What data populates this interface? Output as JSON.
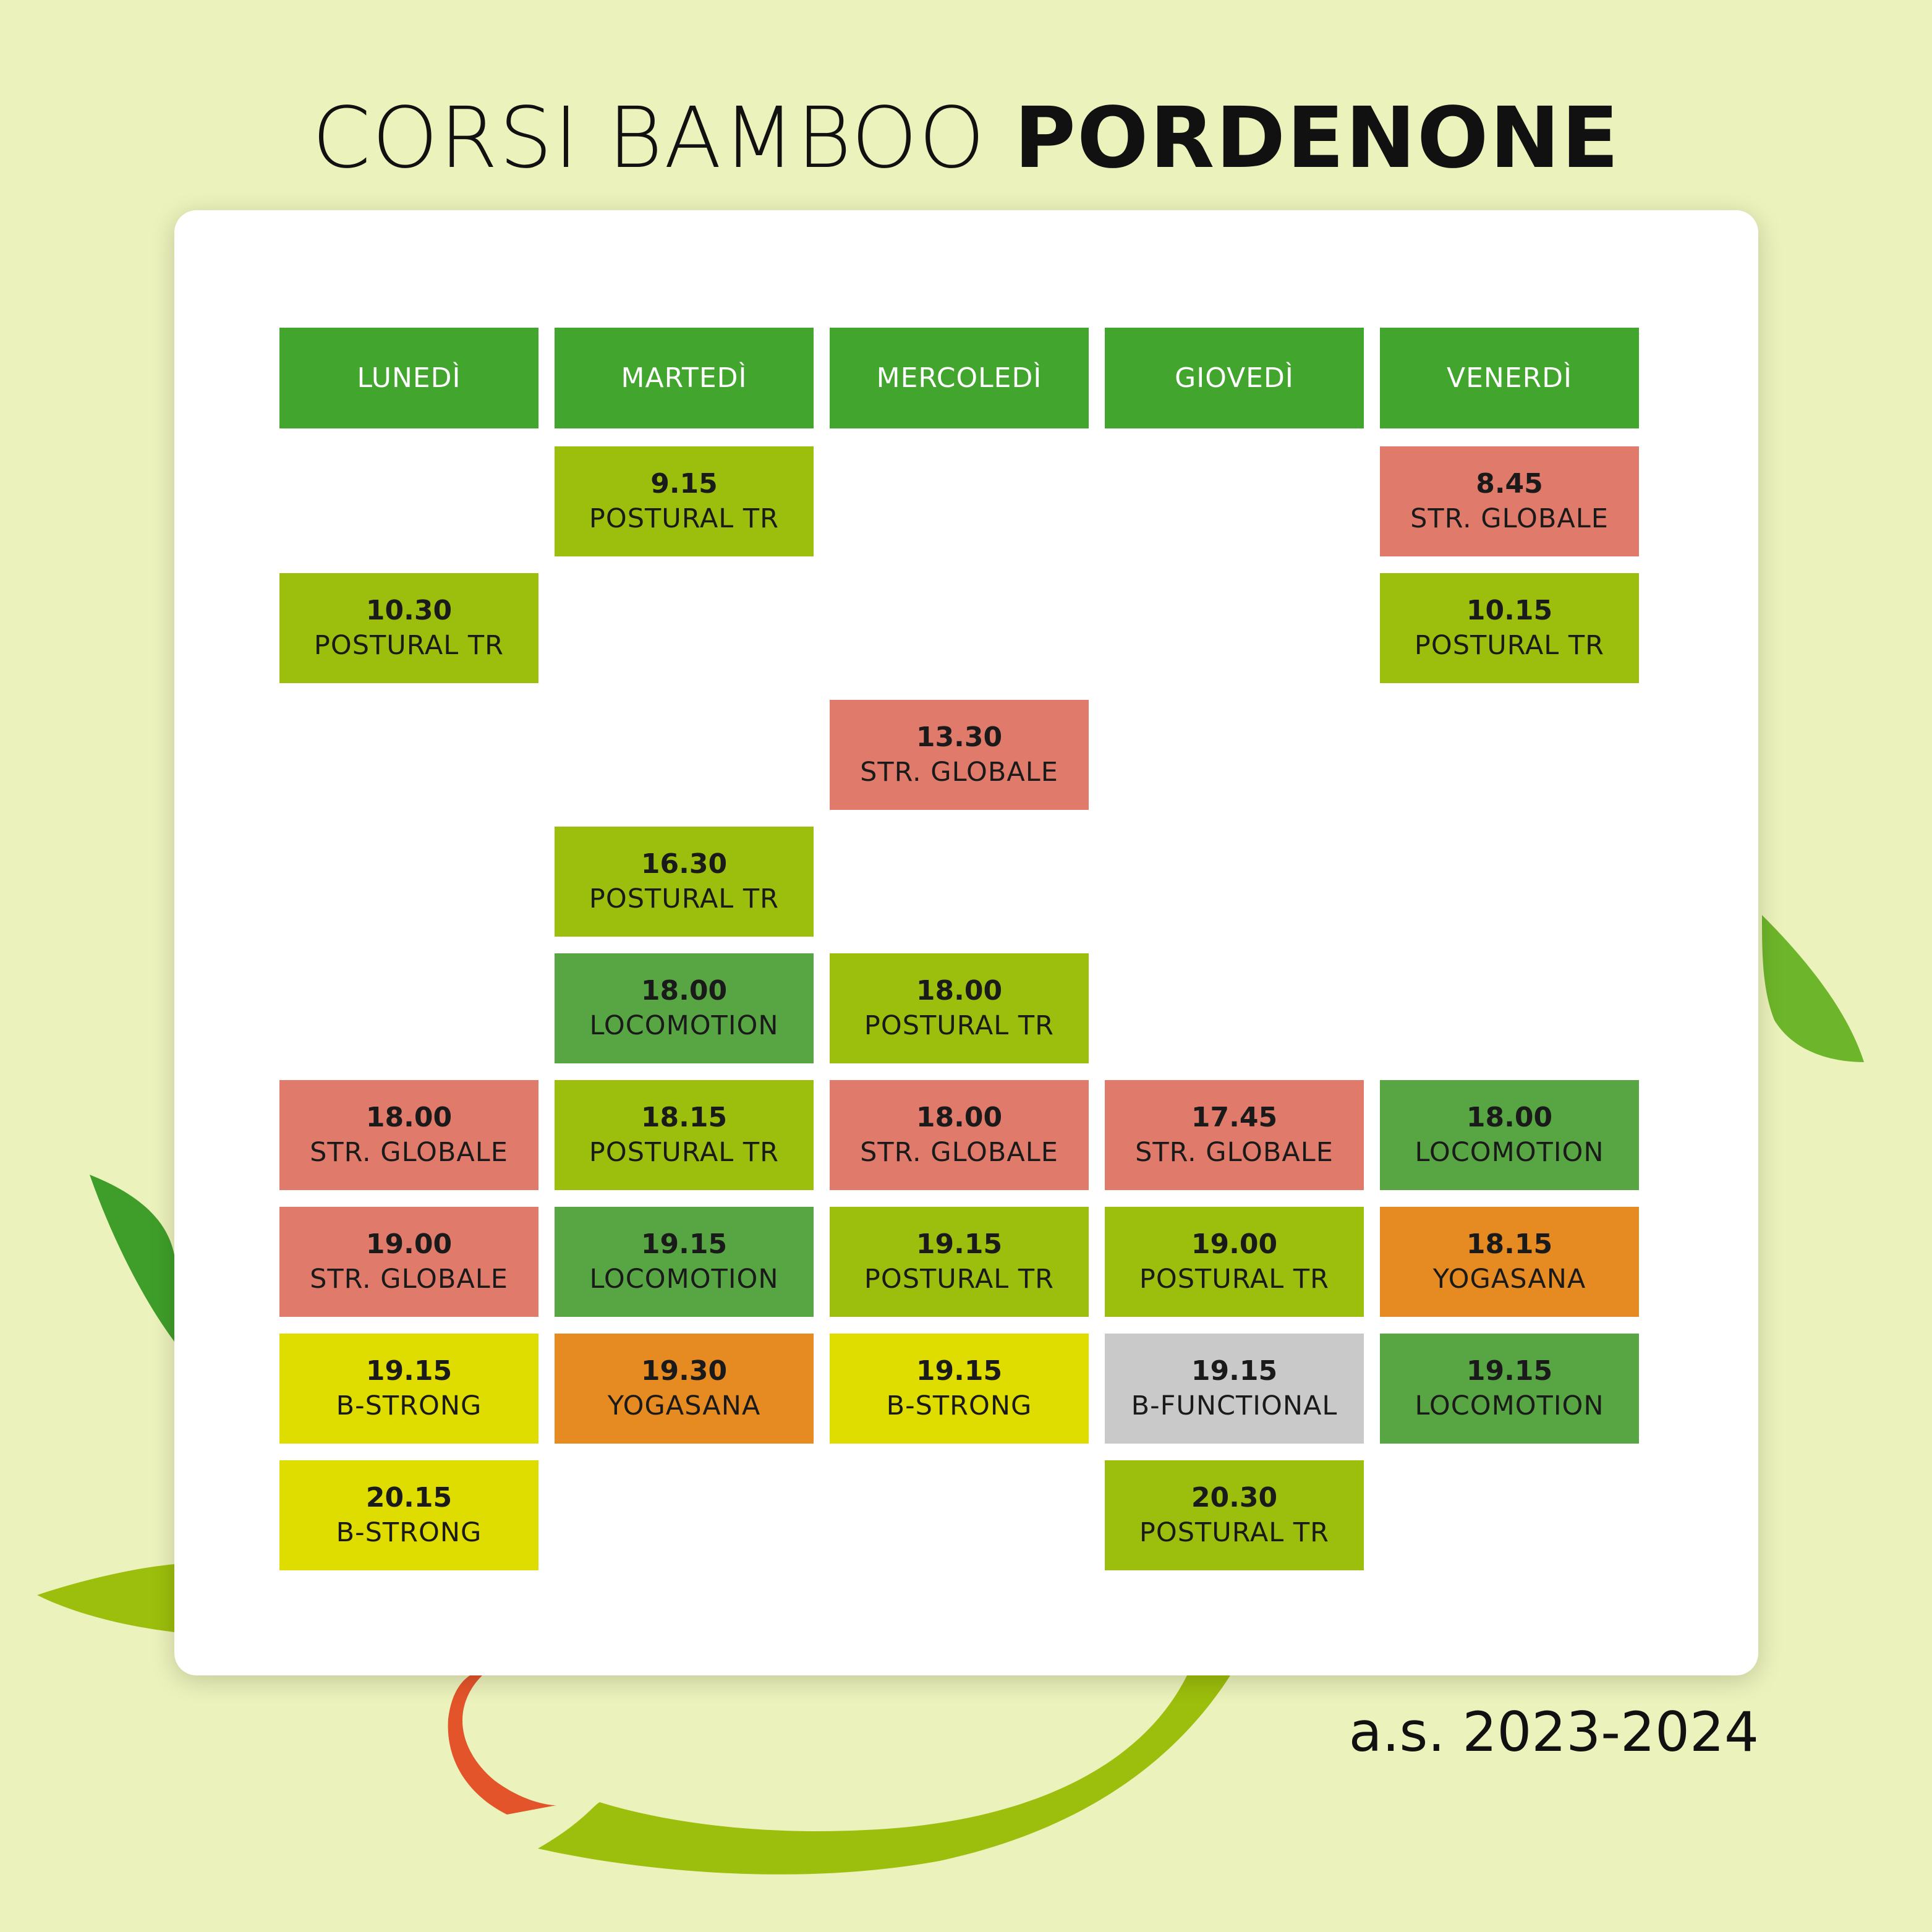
{
  "title": {
    "light": "CORSI BAMBOO ",
    "bold": "PORDENONE"
  },
  "footer": "a.s. 2023-2024",
  "colors": {
    "background": "#ecf2bb",
    "header": "#42a62e",
    "postural_tr": "#9cbe0c",
    "str_globale": "#e07b6b",
    "locomotion": "#58a643",
    "b_strong": "#dfdc00",
    "yogasana": "#e68a22",
    "b_functional": "#c9c9c9"
  },
  "days": [
    "LUNEDÌ",
    "MARTEDÌ",
    "MERCOLEDÌ",
    "GIOVEDÌ",
    "VENERDÌ"
  ],
  "classes": [
    {
      "day": 1,
      "row": 0,
      "time": "9.15",
      "name": "POSTURAL TR",
      "kind": "postural_tr"
    },
    {
      "day": 4,
      "row": 0,
      "time": "8.45",
      "name": "STR. GLOBALE",
      "kind": "str_globale"
    },
    {
      "day": 0,
      "row": 1,
      "time": "10.30",
      "name": "POSTURAL TR",
      "kind": "postural_tr"
    },
    {
      "day": 4,
      "row": 1,
      "time": "10.15",
      "name": "POSTURAL TR",
      "kind": "postural_tr"
    },
    {
      "day": 2,
      "row": 2,
      "time": "13.30",
      "name": "STR. GLOBALE",
      "kind": "str_globale"
    },
    {
      "day": 1,
      "row": 3,
      "time": "16.30",
      "name": "POSTURAL TR",
      "kind": "postural_tr"
    },
    {
      "day": 1,
      "row": 4,
      "time": "18.00",
      "name": "LOCOMOTION",
      "kind": "locomotion"
    },
    {
      "day": 2,
      "row": 4,
      "time": "18.00",
      "name": "POSTURAL TR",
      "kind": "postural_tr"
    },
    {
      "day": 0,
      "row": 5,
      "time": "18.00",
      "name": "STR. GLOBALE",
      "kind": "str_globale"
    },
    {
      "day": 1,
      "row": 5,
      "time": "18.15",
      "name": "POSTURAL TR",
      "kind": "postural_tr"
    },
    {
      "day": 2,
      "row": 5,
      "time": "18.00",
      "name": "STR. GLOBALE",
      "kind": "str_globale"
    },
    {
      "day": 3,
      "row": 5,
      "time": "17.45",
      "name": "STR. GLOBALE",
      "kind": "str_globale"
    },
    {
      "day": 4,
      "row": 5,
      "time": "18.00",
      "name": "LOCOMOTION",
      "kind": "locomotion"
    },
    {
      "day": 0,
      "row": 6,
      "time": "19.00",
      "name": "STR. GLOBALE",
      "kind": "str_globale"
    },
    {
      "day": 1,
      "row": 6,
      "time": "19.15",
      "name": "LOCOMOTION",
      "kind": "locomotion"
    },
    {
      "day": 2,
      "row": 6,
      "time": "19.15",
      "name": "POSTURAL TR",
      "kind": "postural_tr"
    },
    {
      "day": 3,
      "row": 6,
      "time": "19.00",
      "name": "POSTURAL TR",
      "kind": "postural_tr"
    },
    {
      "day": 4,
      "row": 6,
      "time": "18.15",
      "name": "YOGASANA",
      "kind": "yogasana"
    },
    {
      "day": 0,
      "row": 7,
      "time": "19.15",
      "name": "B-STRONG",
      "kind": "b_strong"
    },
    {
      "day": 1,
      "row": 7,
      "time": "19.30",
      "name": "YOGASANA",
      "kind": "yogasana"
    },
    {
      "day": 2,
      "row": 7,
      "time": "19.15",
      "name": "B-STRONG",
      "kind": "b_strong"
    },
    {
      "day": 3,
      "row": 7,
      "time": "19.15",
      "name": "B-FUNCTIONAL",
      "kind": "b_functional"
    },
    {
      "day": 4,
      "row": 7,
      "time": "19.15",
      "name": "LOCOMOTION",
      "kind": "locomotion"
    },
    {
      "day": 0,
      "row": 8,
      "time": "20.15",
      "name": "B-STRONG",
      "kind": "b_strong"
    },
    {
      "day": 3,
      "row": 8,
      "time": "20.30",
      "name": "POSTURAL TR",
      "kind": "postural_tr"
    }
  ]
}
